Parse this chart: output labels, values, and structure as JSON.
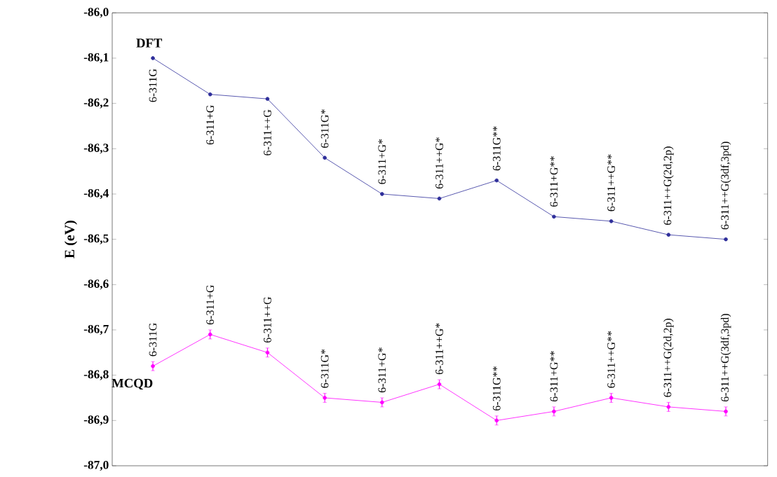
{
  "chart_data": {
    "type": "line",
    "ylabel": "E (eV)",
    "categories": [
      null,
      null,
      null,
      null,
      null,
      null,
      null,
      null,
      null,
      null,
      null
    ],
    "series": [
      {
        "name": "DFT",
        "color": "#2e2e9a",
        "values": [
          -86.1,
          -86.18,
          -86.19,
          -86.32,
          -86.4,
          -86.41,
          -86.37,
          -86.45,
          -86.46,
          -86.49,
          -86.5
        ]
      },
      {
        "name": "MCQD",
        "color": "#ff00ff",
        "values": [
          -86.78,
          -86.71,
          -86.75,
          -86.85,
          -86.86,
          -86.82,
          -86.9,
          -86.88,
          -86.85,
          -86.87,
          -86.88
        ],
        "errors": [
          0.01,
          0.01,
          0.01,
          0.01,
          0.01,
          0.01,
          0.01,
          0.01,
          0.01,
          0.01,
          0.01
        ]
      }
    ],
    "ylim": [
      -87.0,
      -86.0
    ],
    "yticks": [
      {
        "value": -87.0,
        "label": "-87,0"
      },
      {
        "value": -86.9,
        "label": "-86,9"
      },
      {
        "value": -86.8,
        "label": "-86,8"
      },
      {
        "value": -86.7,
        "label": "-86,7"
      },
      {
        "value": -86.6,
        "label": "-86,6"
      },
      {
        "value": -86.5,
        "label": "-86,5"
      },
      {
        "value": -86.4,
        "label": "-86,4"
      },
      {
        "value": -86.3,
        "label": "-86,3"
      },
      {
        "value": -86.2,
        "label": "-86,2"
      },
      {
        "value": -86.1,
        "label": "-86,1"
      },
      {
        "value": -86.0,
        "label": "-86,0"
      }
    ],
    "tick_labels": "y",
    "marker": "circle",
    "line_style": "solid",
    "annotations": [
      "6-311G",
      "6-311+G",
      "6-311++G",
      "6-311G*",
      "6-311+G*",
      "6-311++G*",
      "6-311G**",
      "6-311+G**",
      "6-311++G**",
      "6-311++G(2d,2p)",
      "6-311++G(3df,3pd)",
      "6-311G",
      "6-311+G",
      "6-311++G",
      "6-311G*",
      "6-311+G*",
      "6-311++G*",
      "6-311G**",
      "6-311+G**",
      "6-311++G**",
      "6-311++G(2d,2p)",
      "6-311++G(3df,3pd)"
    ]
  }
}
